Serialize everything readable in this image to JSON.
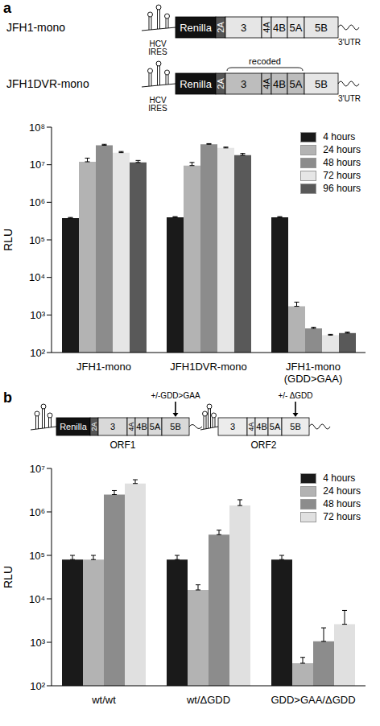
{
  "diagrams": [
    {
      "label": "a",
      "constructs": [
        {
          "name": "JFH1-mono",
          "ires": "HCV IRES",
          "elements": [
            "Renilla",
            "2A",
            "3",
            "4A",
            "4B",
            "5A",
            "5B"
          ],
          "utr": "3'UTR"
        },
        {
          "name": "JFH1DVR-mono",
          "ires": "HCV IRES",
          "elements": [
            "Renilla",
            "2A",
            "3",
            "4A",
            "4B",
            "5A",
            "5B"
          ],
          "utr": "3'UTR",
          "bracket": {
            "label": "recoded",
            "elements": [
              "3",
              "4A",
              "4B",
              "5A"
            ]
          }
        }
      ]
    },
    {
      "label": "b",
      "orfs": [
        {
          "name": "ORF1",
          "elements": [
            "Renilla",
            "2A",
            "3",
            "4A",
            "4B",
            "5A",
            "5B"
          ],
          "mutation": "+/-GDD>GAA"
        },
        {
          "name": "ORF2",
          "elements": [
            "3",
            "4A",
            "4B",
            "5A",
            "5B"
          ],
          "mutation": "+/- ΔGDD"
        }
      ]
    }
  ],
  "chart_data": [
    {
      "type": "bar",
      "y_label": "RLU",
      "log": "y",
      "legend": "top-right",
      "categories": [
        "JFH1-mono",
        "JFH1DVR-mono",
        "JFH1-mono (GDD>GAA)"
      ],
      "ylim": [
        100,
        100000000
      ],
      "yticks": [
        {
          "value": 100,
          "label": "10²"
        },
        {
          "value": 1000,
          "label": "10³"
        },
        {
          "value": 10000,
          "label": "10⁴"
        },
        {
          "value": 100000,
          "label": "10⁵"
        },
        {
          "value": 1000000,
          "label": "10⁶"
        },
        {
          "value": 10000000,
          "label": "10⁷"
        },
        {
          "value": 100000000,
          "label": "10⁸"
        }
      ],
      "series": [
        {
          "name": "4 hours",
          "color": "#1a1a1a",
          "values": [
            380000,
            400000,
            400000
          ],
          "errors": [
            15000,
            15000,
            15000
          ]
        },
        {
          "name": "24 hours",
          "color": "#b3b3b3",
          "values": [
            12000000,
            9500000,
            1700
          ],
          "errors": [
            3000000,
            2000000,
            500
          ]
        },
        {
          "name": "48 hours",
          "color": "#8c8c8c",
          "values": [
            33000000,
            35000000,
            440
          ],
          "errors": [
            2000000,
            1500000,
            30
          ]
        },
        {
          "name": "72 hours",
          "color": "#e6e6e6",
          "values": [
            21000000,
            28000000,
            290
          ],
          "errors": [
            1500000,
            1500000,
            15
          ]
        },
        {
          "name": "96 hours",
          "color": "#595959",
          "values": [
            11500000,
            18000000,
            330
          ],
          "errors": [
            1500000,
            2000000,
            20
          ]
        }
      ]
    },
    {
      "type": "bar",
      "y_label": "RLU",
      "log": "y",
      "legend": "top-right",
      "categories": [
        "wt/wt",
        "wt/ΔGDD",
        "GDD>GAA/ΔGDD"
      ],
      "ylim": [
        100,
        10000000
      ],
      "yticks": [
        {
          "value": 100,
          "label": "10²"
        },
        {
          "value": 1000,
          "label": "10³"
        },
        {
          "value": 10000,
          "label": "10⁴"
        },
        {
          "value": 100000,
          "label": "10⁵"
        },
        {
          "value": 1000000,
          "label": "10⁶"
        },
        {
          "value": 10000000,
          "label": "10⁷"
        }
      ],
      "series": [
        {
          "name": "4 hours",
          "color": "#1a1a1a",
          "values": [
            80000,
            80000,
            80000
          ],
          "errors": [
            20000,
            20000,
            20000
          ]
        },
        {
          "name": "24 hours",
          "color": "#b3b3b3",
          "values": [
            80000,
            16000,
            330
          ],
          "errors": [
            20000,
            5000,
            120
          ]
        },
        {
          "name": "48 hours",
          "color": "#8c8c8c",
          "values": [
            2500000,
            300000,
            1050
          ],
          "errors": [
            600000,
            80000,
            1100
          ]
        },
        {
          "name": "72 hours",
          "color": "#e0e0e0",
          "values": [
            4500000,
            1400000,
            2600
          ],
          "errors": [
            1000000,
            500000,
            2800
          ]
        }
      ]
    }
  ]
}
